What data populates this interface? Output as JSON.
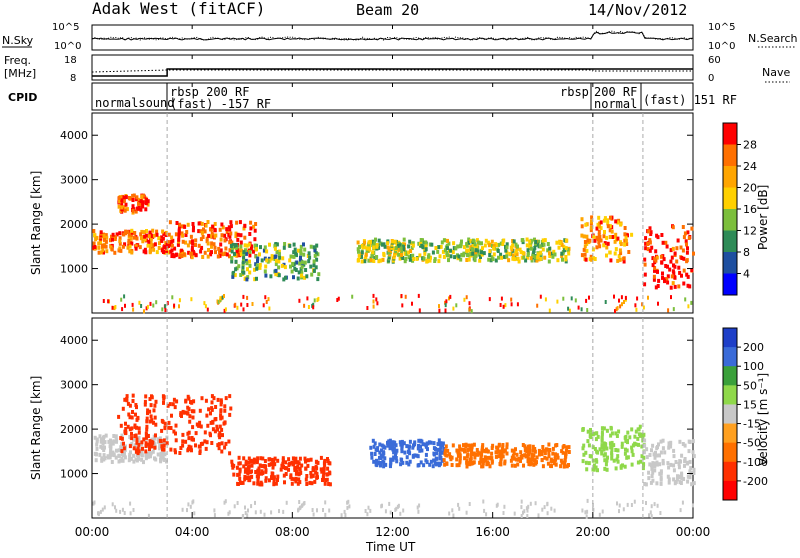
{
  "header": {
    "station": "Adak West (fitACF)",
    "beam": "Beam 20",
    "date": "14/Nov/2012"
  },
  "top_panels": {
    "nsky_label": "N.Sky",
    "nsearch_label": "N.Search",
    "nsky_ticks": [
      "10^5",
      "10^0"
    ],
    "nsearch_ticks": [
      "10^5",
      "10^0"
    ],
    "freq_label_1": "Freq.",
    "freq_label_2": "[MHz]",
    "freq_ticks": [
      "18",
      "8"
    ],
    "nave_label": "Nave",
    "nave_ticks": [
      "60",
      "0"
    ],
    "cpid_label": "CPID",
    "cpid_segments": [
      "normalsound",
      "rbsp 200 RF",
      "(fast) -157 RF",
      "rbsp",
      "200 RF",
      "normal",
      "(fast) 151 RF"
    ]
  },
  "chart_data": [
    {
      "type": "heatmap",
      "title": "Power",
      "ylabel": "Slant Range [km]",
      "xlabel": "",
      "ylim": [
        0,
        4500
      ],
      "yticks": [
        "1000",
        "2000",
        "3000",
        "4000"
      ],
      "colorbar_label": "Power [dB]",
      "colorbar_ticks": [
        "28",
        "24",
        "20",
        "16",
        "12",
        "8",
        "4"
      ],
      "colors": [
        "#ff0000",
        "#ff7000",
        "#ffa500",
        "#ffd000",
        "#7cbf3c",
        "#2e8b57",
        "#1e4fa0",
        "#0000ff"
      ],
      "echo_regions": [
        {
          "t": [
            0.0,
            3.0
          ],
          "range": [
            1400,
            1900
          ],
          "value": 24
        },
        {
          "t": [
            1.0,
            2.2
          ],
          "range": [
            2300,
            2700
          ],
          "value": 26
        },
        {
          "t": [
            3.0,
            6.5
          ],
          "range": [
            1300,
            2100
          ],
          "value": 26
        },
        {
          "t": [
            5.5,
            9.0
          ],
          "range": [
            800,
            1600
          ],
          "value": 12
        },
        {
          "t": [
            10.5,
            19.0
          ],
          "range": [
            1200,
            1700
          ],
          "value": 14
        },
        {
          "t": [
            19.5,
            21.5
          ],
          "range": [
            1200,
            2200
          ],
          "value": 22
        },
        {
          "t": [
            22.0,
            24.0
          ],
          "range": [
            600,
            2000
          ],
          "value": 28
        }
      ]
    },
    {
      "type": "heatmap",
      "title": "Velocity",
      "ylabel": "Slant Range [km]",
      "xlabel": "Time UT",
      "ylim": [
        0,
        4500
      ],
      "yticks": [
        "1000",
        "2000",
        "3000",
        "4000"
      ],
      "colorbar_label": "Velocity [m s⁻¹]",
      "colorbar_ticks": [
        "200",
        "100",
        "50",
        "15",
        "-15",
        "-50",
        "-100",
        "-200"
      ],
      "colors": [
        "#1e3fc8",
        "#3a6bd8",
        "#3aa03a",
        "#8fd84a",
        "#c8c8c8",
        "#ffa020",
        "#ff7000",
        "#ff3000",
        "#ff0000"
      ],
      "echo_regions": [
        {
          "t": [
            0.0,
            3.0
          ],
          "range": [
            1300,
            1900
          ],
          "value": 0
        },
        {
          "t": [
            1.0,
            5.5
          ],
          "range": [
            1500,
            2800
          ],
          "value": -180
        },
        {
          "t": [
            5.5,
            9.5
          ],
          "range": [
            800,
            1400
          ],
          "value": -150
        },
        {
          "t": [
            11.0,
            14.0
          ],
          "range": [
            1200,
            1800
          ],
          "value": 150
        },
        {
          "t": [
            14.0,
            19.0
          ],
          "range": [
            1200,
            1700
          ],
          "value": -60
        },
        {
          "t": [
            19.5,
            22.0
          ],
          "range": [
            1100,
            2100
          ],
          "value": 40
        },
        {
          "t": [
            22.0,
            24.0
          ],
          "range": [
            800,
            1800
          ],
          "value": 0
        }
      ]
    }
  ],
  "x_axis": {
    "tick_labels": [
      "00:00",
      "04:00",
      "08:00",
      "12:00",
      "16:00",
      "20:00",
      "00:00"
    ],
    "label": "Time UT",
    "range": [
      0,
      24
    ]
  }
}
